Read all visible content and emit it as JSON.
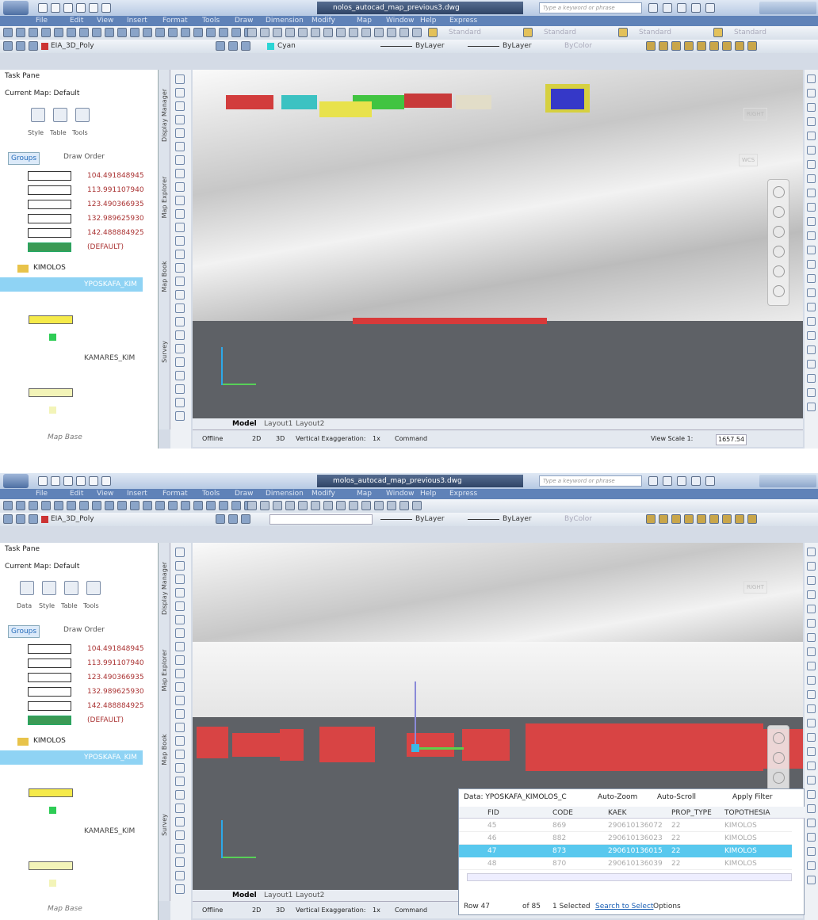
{
  "windows": [
    {
      "title": "nolos_autocad_map_previous3.dwg",
      "search": "Type a keyword or phrase",
      "menu": [
        "File",
        "Edit",
        "View",
        "Insert",
        "Format",
        "Tools",
        "Draw",
        "Dimension",
        "Modify",
        "Map",
        "Window",
        "Help",
        "Express"
      ],
      "styles": [
        "Standard",
        "Standard",
        "Standard",
        "Standard"
      ],
      "layer": "EIA_3D_Poly",
      "color": "Cyan",
      "linetype": "ByLayer",
      "lineweight": "ByLayer",
      "plotstyle": "ByColor",
      "task_pane": {
        "title": "Task Pane",
        "current_map": "Current Map: Default",
        "tools": [
          "Style",
          "Table",
          "Tools"
        ],
        "tabs": [
          "Groups",
          "Draw Order"
        ],
        "legend": [
          "104.491848945",
          "113.991107940",
          "123.490366935",
          "132.989625930",
          "142.488884925",
          "(DEFAULT)"
        ],
        "group": "KIMOLOS",
        "layers": [
          "YPOSKAFA_KIM",
          "KAMARES_KIM"
        ],
        "map_base": "Map Base"
      },
      "side_tabs": [
        "Display Manager",
        "Map Explorer",
        "Map Book",
        "Survey"
      ],
      "viewcube": [
        "RIGHT",
        "WCS"
      ],
      "layout_tabs": [
        "Model",
        "Layout1",
        "Layout2"
      ],
      "status": {
        "offline": "Offline",
        "mode_2d": "2D",
        "mode_3d": "3D",
        "exaggeration_label": "Vertical Exaggeration:",
        "exaggeration": "1x",
        "command": "Command",
        "view_scale_label": "View Scale 1:",
        "view_scale": "1657.54"
      }
    },
    {
      "title": "molos_autocad_map_previous3.dwg",
      "search": "Type a keyword or phrase",
      "menu": [
        "File",
        "Edit",
        "View",
        "Insert",
        "Format",
        "Tools",
        "Draw",
        "Dimension",
        "Modify",
        "Map",
        "Window",
        "Help",
        "Express"
      ],
      "layer": "EIA_3D_Poly",
      "linetype": "ByLayer",
      "lineweight": "ByLayer",
      "plotstyle": "ByColor",
      "task_pane": {
        "title": "Task Pane",
        "current_map": "Current Map: Default",
        "tools": [
          "Data",
          "Style",
          "Table",
          "Tools"
        ],
        "tabs": [
          "Groups",
          "Draw Order"
        ],
        "legend": [
          "104.491848945",
          "113.991107940",
          "123.490366935",
          "132.989625930",
          "142.488884925",
          "(DEFAULT)"
        ],
        "group": "KIMOLOS",
        "layers": [
          "YPOSKAFA_KIM",
          "KAMARES_KIM"
        ],
        "map_base": "Map Base"
      },
      "side_tabs": [
        "Display Manager",
        "Map Explorer",
        "Map Book",
        "Survey"
      ],
      "viewcube": [
        "RIGHT"
      ],
      "layout_tabs": [
        "Model",
        "Layout1",
        "Layout2"
      ],
      "status": {
        "offline": "Offline",
        "mode_2d": "2D",
        "mode_3d": "3D",
        "exaggeration_label": "Vertical Exaggeration:",
        "exaggeration": "1x",
        "command": "Command"
      },
      "data_table": {
        "source": "Data:  YPOSKAFA_KIMOLOS_C",
        "auto_zoom": "Auto-Zoom",
        "auto_scroll": "Auto-Scroll",
        "apply_filter": "Apply Filter",
        "columns": [
          "FID",
          "CODE",
          "KAEK",
          "PROP_TYPE",
          "TOPOTHESIA"
        ],
        "rows": [
          [
            "45",
            "869",
            "290610136072",
            "22",
            "KIMOLOS"
          ],
          [
            "46",
            "882",
            "290610136023",
            "22",
            "KIMOLOS"
          ],
          [
            "47",
            "873",
            "290610136015",
            "22",
            "KIMOLOS"
          ],
          [
            "48",
            "870",
            "290610136039",
            "22",
            "KIMOLOS"
          ]
        ],
        "row_label": "Row 47",
        "count": "of 85",
        "selected": "1 Selected",
        "search_to_select": "Search to Select",
        "options": "Options"
      }
    }
  ]
}
